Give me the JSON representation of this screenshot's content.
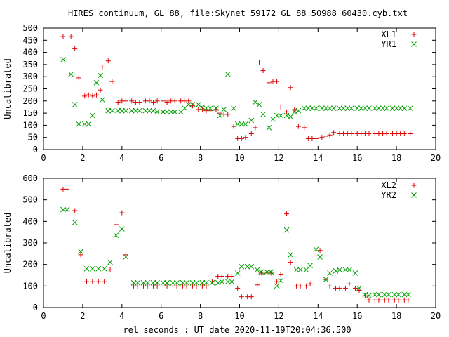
{
  "title": "HIRES continuum, GL_88, file:Skynet_59172_GL_88_50988_60430.cyb.txt",
  "xlabel": "rel seconds : UT date 2020-11-19T20:04:36.500",
  "colors": {
    "red": "#dd0000",
    "green": "#00a000"
  },
  "chart_data": [
    {
      "type": "scatter",
      "ylabel": "Uncalibrated",
      "xlim": [
        0,
        20
      ],
      "ylim": [
        0,
        500
      ],
      "xticks": [
        "0",
        "2",
        "4",
        "6",
        "8",
        "10",
        "12",
        "14",
        "16",
        "18",
        "20"
      ],
      "yticks": [
        "0",
        "50",
        "100",
        "150",
        "200",
        "250",
        "300",
        "350",
        "400",
        "450",
        "500"
      ],
      "legend_position": "top-right",
      "series": [
        {
          "name": "XL1",
          "marker": "plus",
          "color": "#dd0000",
          "x": [
            1.0,
            1.4,
            1.6,
            1.8,
            2.1,
            2.3,
            2.5,
            2.7,
            2.9,
            3.0,
            3.3,
            3.5,
            3.8,
            4.0,
            4.2,
            4.5,
            4.7,
            4.9,
            5.2,
            5.4,
            5.6,
            5.8,
            6.1,
            6.3,
            6.5,
            6.7,
            7.0,
            7.2,
            7.4,
            7.6,
            7.9,
            8.1,
            8.3,
            8.5,
            8.8,
            9.0,
            9.2,
            9.4,
            9.7,
            9.9,
            10.1,
            10.3,
            10.6,
            10.8,
            11.0,
            11.2,
            11.5,
            11.7,
            11.9,
            12.1,
            12.4,
            12.6,
            12.8,
            13.0,
            13.3,
            13.5,
            13.7,
            13.9,
            14.2,
            14.4,
            14.6,
            14.8,
            15.1,
            15.3,
            15.5,
            15.7,
            16.0,
            16.2,
            16.4,
            16.6,
            16.9,
            17.1,
            17.3,
            17.5,
            17.8,
            18.0,
            18.2,
            18.4,
            18.7
          ],
          "y": [
            465,
            465,
            415,
            295,
            220,
            225,
            220,
            225,
            245,
            340,
            365,
            280,
            195,
            200,
            200,
            200,
            195,
            195,
            200,
            200,
            195,
            200,
            200,
            195,
            200,
            200,
            200,
            200,
            200,
            180,
            165,
            165,
            160,
            160,
            165,
            150,
            145,
            145,
            95,
            45,
            45,
            50,
            65,
            90,
            360,
            325,
            275,
            280,
            280,
            175,
            155,
            255,
            165,
            95,
            90,
            45,
            45,
            45,
            50,
            55,
            60,
            70,
            65,
            65,
            65,
            65,
            65,
            65,
            65,
            65,
            65,
            65,
            65,
            65,
            65,
            65,
            65,
            65,
            65
          ],
          "y_note": ""
        },
        {
          "name": "YR1",
          "marker": "cross",
          "color": "#00a000",
          "x": [
            1.0,
            1.4,
            1.6,
            1.8,
            2.1,
            2.3,
            2.5,
            2.7,
            2.9,
            3.0,
            3.3,
            3.5,
            3.8,
            4.0,
            4.2,
            4.5,
            4.7,
            4.9,
            5.2,
            5.4,
            5.6,
            5.8,
            6.1,
            6.3,
            6.5,
            6.7,
            7.0,
            7.2,
            7.4,
            7.6,
            7.9,
            8.1,
            8.3,
            8.5,
            8.8,
            9.0,
            9.2,
            9.4,
            9.7,
            9.9,
            10.1,
            10.3,
            10.6,
            10.8,
            11.0,
            11.2,
            11.5,
            11.7,
            11.9,
            12.1,
            12.4,
            12.6,
            12.8,
            13.0,
            13.3,
            13.5,
            13.7,
            13.9,
            14.2,
            14.4,
            14.6,
            14.8,
            15.1,
            15.3,
            15.5,
            15.7,
            16.0,
            16.2,
            16.4,
            16.6,
            16.9,
            17.1,
            17.3,
            17.5,
            17.8,
            18.0,
            18.2,
            18.4,
            18.7
          ],
          "y": [
            370,
            310,
            185,
            105,
            105,
            105,
            140,
            275,
            305,
            205,
            160,
            160,
            160,
            160,
            160,
            160,
            160,
            160,
            160,
            160,
            160,
            155,
            155,
            155,
            155,
            155,
            155,
            170,
            185,
            185,
            185,
            175,
            170,
            170,
            170,
            140,
            165,
            310,
            170,
            105,
            105,
            105,
            120,
            195,
            185,
            145,
            90,
            125,
            140,
            140,
            140,
            135,
            155,
            160,
            170,
            170,
            170,
            170,
            170,
            170,
            170,
            170,
            170,
            170,
            170,
            170,
            170,
            170,
            170,
            170,
            170,
            170,
            170,
            170,
            170,
            170,
            170,
            170,
            170
          ]
        }
      ]
    },
    {
      "type": "scatter",
      "ylabel": "Uncalibrated",
      "xlim": [
        0,
        20
      ],
      "ylim": [
        0,
        600
      ],
      "xticks": [
        "0",
        "2",
        "4",
        "6",
        "8",
        "10",
        "12",
        "14",
        "16",
        "18",
        "20"
      ],
      "yticks": [
        "0",
        "100",
        "200",
        "300",
        "400",
        "500",
        "600"
      ],
      "legend_position": "top-right",
      "series": [
        {
          "name": "XL2",
          "marker": "plus",
          "color": "#dd0000",
          "x": [
            1.0,
            1.2,
            1.6,
            1.9,
            2.2,
            2.5,
            2.8,
            3.1,
            3.4,
            3.7,
            4.0,
            4.2,
            4.6,
            4.8,
            5.1,
            5.3,
            5.6,
            5.8,
            6.1,
            6.3,
            6.6,
            6.8,
            7.1,
            7.3,
            7.6,
            7.8,
            8.1,
            8.3,
            8.6,
            8.9,
            9.1,
            9.4,
            9.6,
            9.9,
            10.1,
            10.4,
            10.6,
            10.9,
            11.1,
            11.4,
            11.6,
            11.9,
            12.1,
            12.4,
            12.6,
            12.9,
            13.1,
            13.4,
            13.6,
            13.9,
            14.1,
            14.4,
            14.6,
            14.9,
            15.1,
            15.4,
            15.6,
            15.9,
            16.1,
            16.4,
            16.6,
            16.9,
            17.1,
            17.4,
            17.6,
            17.9,
            18.1,
            18.4,
            18.6
          ],
          "y": [
            550,
            550,
            450,
            245,
            120,
            120,
            120,
            120,
            175,
            385,
            440,
            245,
            100,
            100,
            100,
            100,
            100,
            100,
            100,
            100,
            100,
            100,
            100,
            100,
            100,
            100,
            100,
            100,
            120,
            145,
            145,
            145,
            145,
            90,
            50,
            50,
            50,
            105,
            160,
            160,
            160,
            120,
            155,
            435,
            210,
            100,
            100,
            100,
            110,
            240,
            265,
            130,
            100,
            90,
            90,
            90,
            110,
            90,
            80,
            55,
            35,
            35,
            35,
            35,
            35,
            35,
            35,
            35,
            35
          ],
          "y_note": ""
        },
        {
          "name": "YR2",
          "marker": "cross",
          "color": "#00a000",
          "x": [
            1.0,
            1.2,
            1.6,
            1.9,
            2.2,
            2.5,
            2.8,
            3.1,
            3.4,
            3.7,
            4.0,
            4.2,
            4.6,
            4.8,
            5.1,
            5.3,
            5.6,
            5.8,
            6.1,
            6.3,
            6.6,
            6.8,
            7.1,
            7.3,
            7.6,
            7.8,
            8.1,
            8.3,
            8.6,
            8.9,
            9.1,
            9.4,
            9.6,
            9.9,
            10.1,
            10.4,
            10.6,
            10.9,
            11.1,
            11.4,
            11.6,
            11.9,
            12.1,
            12.4,
            12.6,
            12.9,
            13.1,
            13.4,
            13.6,
            13.9,
            14.1,
            14.4,
            14.6,
            14.9,
            15.1,
            15.4,
            15.6,
            15.9,
            16.1,
            16.4,
            16.6,
            16.9,
            17.1,
            17.4,
            17.6,
            17.9,
            18.1,
            18.4,
            18.6
          ],
          "y": [
            455,
            455,
            395,
            260,
            180,
            180,
            180,
            180,
            210,
            335,
            365,
            235,
            115,
            115,
            115,
            115,
            115,
            115,
            115,
            115,
            115,
            115,
            115,
            115,
            115,
            115,
            115,
            115,
            115,
            115,
            120,
            120,
            120,
            160,
            190,
            190,
            190,
            175,
            165,
            165,
            165,
            100,
            125,
            360,
            245,
            175,
            175,
            175,
            195,
            270,
            235,
            130,
            160,
            170,
            175,
            175,
            175,
            160,
            90,
            60,
            55,
            60,
            60,
            60,
            60,
            60,
            60,
            60,
            60
          ]
        }
      ]
    }
  ]
}
